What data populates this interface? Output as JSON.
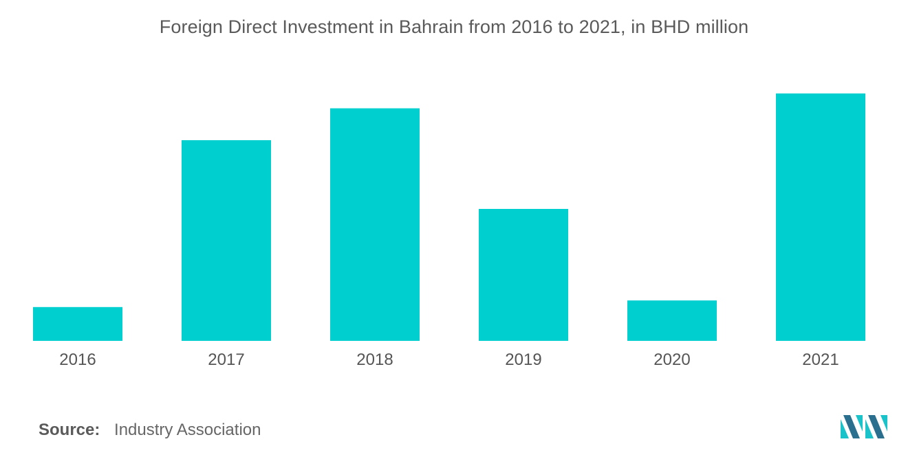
{
  "chart_data": {
    "type": "bar",
    "title": "Foreign Direct Investment in Bahrain from 2016 to 2021, in BHD million",
    "categories": [
      "2016",
      "2017",
      "2018",
      "2019",
      "2020",
      "2021"
    ],
    "values": [
      123,
      730,
      846,
      480,
      147,
      900
    ],
    "ylim": [
      0,
      1000
    ],
    "xlabel": "",
    "ylabel": "",
    "grid": false,
    "legend": "none"
  },
  "source": {
    "label": "Source:",
    "text": "Industry Association"
  },
  "colors": {
    "bar": "#00cfd0",
    "axis_text": "#555555",
    "logo_dark": "#2b6f8f",
    "logo_light": "#19c3c9"
  },
  "icons": {
    "logo": "mordor-intelligence-logo"
  }
}
